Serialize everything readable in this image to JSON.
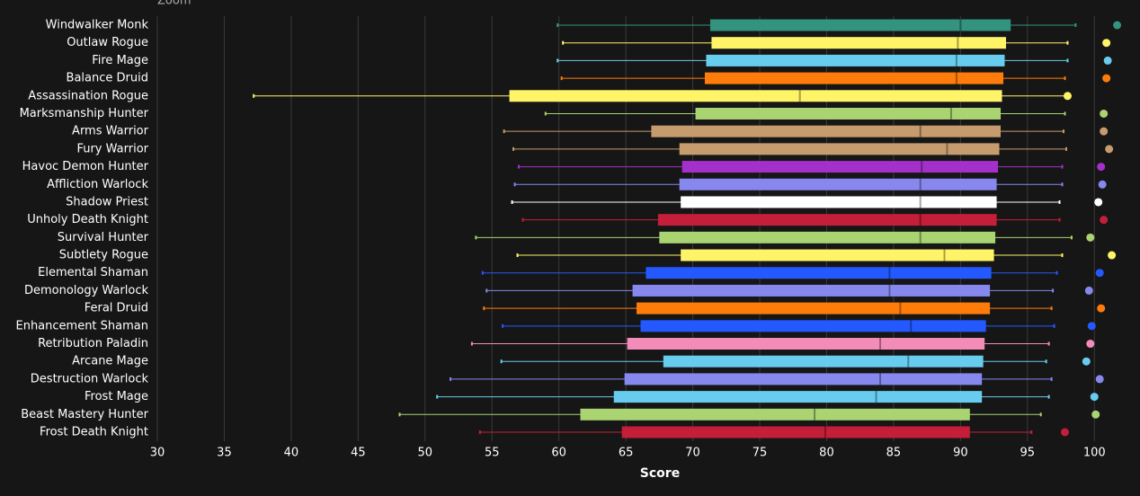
{
  "chart_data": {
    "type": "boxplot",
    "zoom_label": "Zoom",
    "x_label": "Score",
    "categories": [
      "Windwalker Monk",
      "Outlaw Rogue",
      "Fire Mage",
      "Balance Druid",
      "Assassination Rogue",
      "Marksmanship Hunter",
      "Arms Warrior",
      "Fury Warrior",
      "Havoc Demon Hunter",
      "Affliction Warlock",
      "Shadow Priest",
      "Unholy Death Knight",
      "Survival Hunter",
      "Subtlety Rogue",
      "Elemental Shaman",
      "Demonology Warlock",
      "Feral Druid",
      "Enhancement Shaman",
      "Retribution Paladin",
      "Arcane Mage",
      "Destruction Warlock",
      "Frost Mage",
      "Beast Mastery Hunter",
      "Frost Death Knight"
    ],
    "colors": [
      "#33937f",
      "#fff468",
      "#68ccef",
      "#ff7c0a",
      "#fff468",
      "#aad372",
      "#c69b6d",
      "#c69b6d",
      "#a330c9",
      "#8788ee",
      "#ffffff",
      "#c41e3a",
      "#aad372",
      "#fff468",
      "#2459ff",
      "#8788ee",
      "#ff7c0a",
      "#2459ff",
      "#f48cba",
      "#68ccef",
      "#8788ee",
      "#68ccef",
      "#aad372",
      "#c41e3a"
    ],
    "low": [
      59.9,
      60.3,
      59.9,
      60.2,
      37.2,
      59.0,
      55.9,
      56.6,
      57.0,
      56.7,
      56.5,
      57.3,
      53.8,
      56.9,
      54.3,
      54.6,
      54.4,
      55.8,
      53.5,
      55.7,
      51.9,
      50.9,
      48.1,
      54.1
    ],
    "q1": [
      71.3,
      71.4,
      71.0,
      70.9,
      56.3,
      70.2,
      66.9,
      69.0,
      69.2,
      69.0,
      69.1,
      67.4,
      67.5,
      69.1,
      66.5,
      65.5,
      65.8,
      66.1,
      65.1,
      67.8,
      64.9,
      64.1,
      61.6,
      64.7
    ],
    "median": [
      90.0,
      89.8,
      89.7,
      89.7,
      78.0,
      89.3,
      87.0,
      89.0,
      87.1,
      87.0,
      87.0,
      87.0,
      87.0,
      88.8,
      84.7,
      84.7,
      85.5,
      86.3,
      84.0,
      86.1,
      84.0,
      83.7,
      79.1,
      79.9
    ],
    "q3": [
      93.75,
      93.4,
      93.3,
      93.2,
      93.1,
      93.0,
      93.0,
      92.9,
      92.8,
      92.7,
      92.7,
      92.7,
      92.6,
      92.5,
      92.3,
      92.2,
      92.2,
      91.9,
      91.8,
      91.7,
      91.6,
      91.6,
      90.7,
      90.7
    ],
    "high": [
      98.6,
      98.0,
      98.0,
      97.8,
      97.8,
      97.8,
      97.7,
      97.9,
      97.6,
      97.6,
      97.4,
      97.4,
      98.3,
      97.6,
      97.2,
      96.9,
      96.8,
      97.0,
      96.6,
      96.4,
      96.8,
      96.6,
      96.0,
      95.3
    ],
    "outliers": [
      101.7,
      100.9,
      101.0,
      100.9,
      98.0,
      100.7,
      100.7,
      101.1,
      100.5,
      100.6,
      100.3,
      100.7,
      99.7,
      101.3,
      100.4,
      99.6,
      100.5,
      99.8,
      99.7,
      99.4,
      100.4,
      100.0,
      100.1,
      97.8
    ],
    "xlim": [
      30,
      102.2
    ],
    "xticks": [
      30,
      35,
      40,
      45,
      50,
      55,
      60,
      65,
      70,
      75,
      80,
      85,
      90,
      95,
      100
    ],
    "grid": true
  }
}
